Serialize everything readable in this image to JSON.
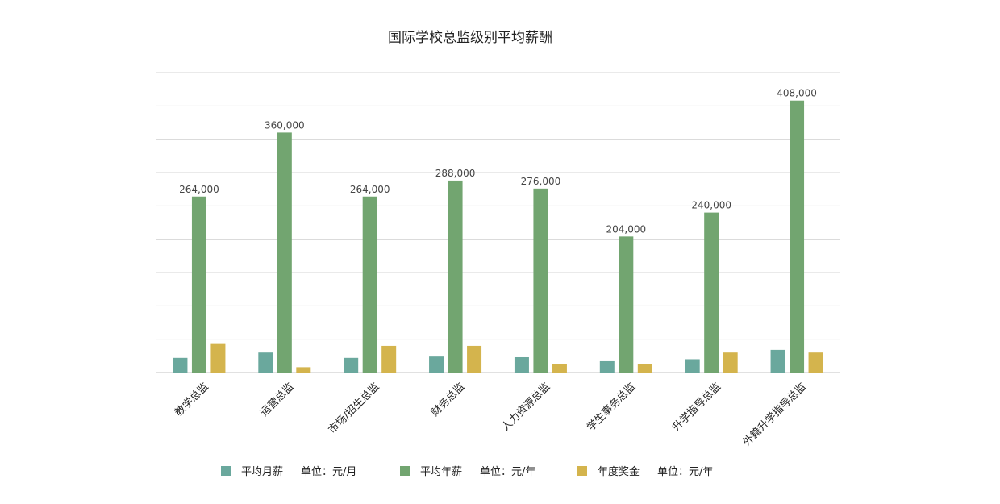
{
  "chart_data": {
    "type": "bar",
    "title": "国际学校总监级别平均薪酬",
    "categories": [
      "教学总监",
      "运营总监",
      "市场/招生总监",
      "财务总监",
      "人力资源总监",
      "学生事务总监",
      "升学指导总监",
      "外籍升学指导总监"
    ],
    "series": [
      {
        "name": "平均月薪",
        "unit": "单位：元/月",
        "color": "#6aa89d",
        "values": [
          22000,
          30000,
          22000,
          24000,
          23000,
          17000,
          20000,
          34000
        ]
      },
      {
        "name": "平均年薪",
        "unit": "单位：元/年",
        "color": "#72a570",
        "values": [
          264000,
          360000,
          264000,
          288000,
          276000,
          204000,
          240000,
          408000
        ]
      },
      {
        "name": "年度奖金",
        "unit": "单位：元/年",
        "color": "#d4b44d",
        "values": [
          44000,
          8000,
          40000,
          40000,
          13000,
          13000,
          30000,
          30000
        ]
      }
    ],
    "data_labels": [
      "264,000",
      "360,000",
      "264,000",
      "288,000",
      "276,000",
      "204,000",
      "240,000",
      "408,000"
    ],
    "ylim": [
      0,
      450000
    ],
    "y_step": 50000,
    "grid": true,
    "legend": "bottom"
  }
}
